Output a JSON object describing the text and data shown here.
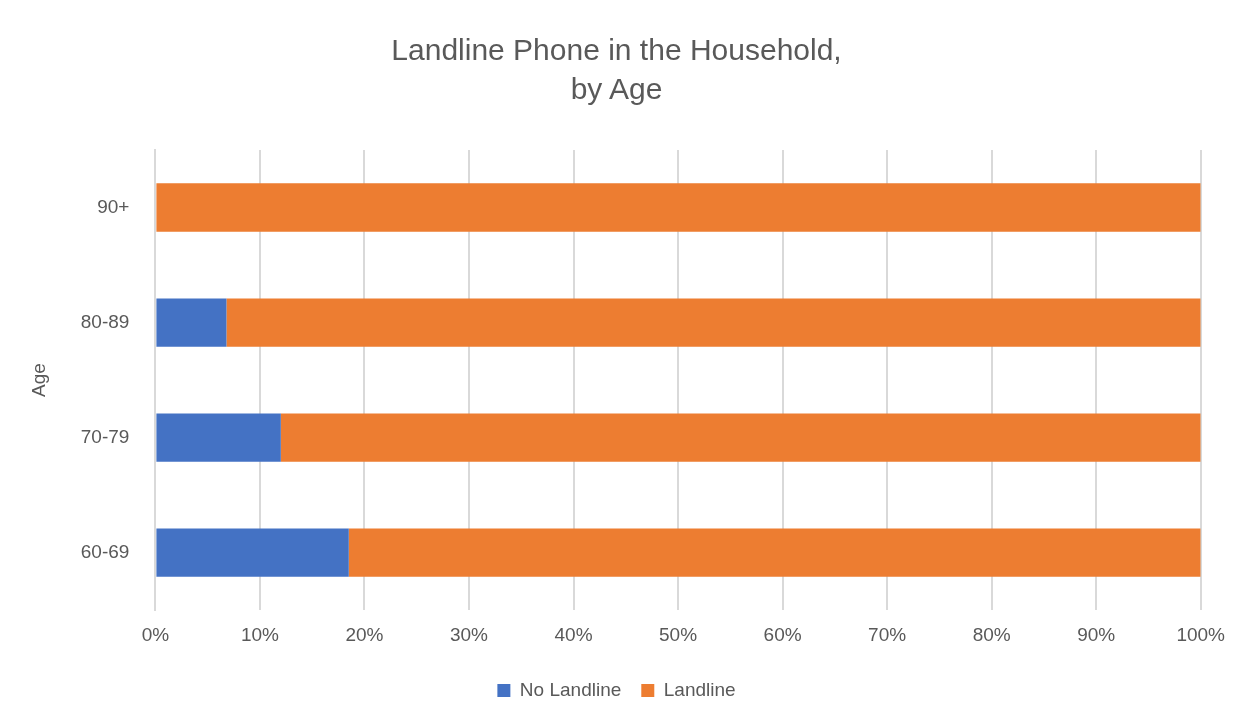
{
  "chart_data": {
    "type": "bar",
    "orientation": "horizontal",
    "stacked": true,
    "title": "Landline Phone in the Household, by Age",
    "ylabel": "Age",
    "categories": [
      "90+",
      "80-89",
      "70-79",
      "60-69"
    ],
    "series": [
      {
        "name": "No Landline",
        "color": "#4472c4",
        "values": [
          0,
          6.8,
          12,
          18.5
        ]
      },
      {
        "name": "Landline",
        "color": "#ed7d31",
        "values": [
          100,
          93.2,
          88,
          81.5
        ]
      }
    ],
    "xlim": [
      0,
      100
    ],
    "xticks": [
      {
        "value": 0,
        "label": "0%"
      },
      {
        "value": 10,
        "label": "10%"
      },
      {
        "value": 20,
        "label": "20%"
      },
      {
        "value": 30,
        "label": "30%"
      },
      {
        "value": 40,
        "label": "40%"
      },
      {
        "value": 50,
        "label": "50%"
      },
      {
        "value": 60,
        "label": "60%"
      },
      {
        "value": 70,
        "label": "70%"
      },
      {
        "value": 80,
        "label": "80%"
      },
      {
        "value": 90,
        "label": "90%"
      },
      {
        "value": 100,
        "label": "100%"
      }
    ],
    "grid": "x",
    "legend": "bottom"
  }
}
